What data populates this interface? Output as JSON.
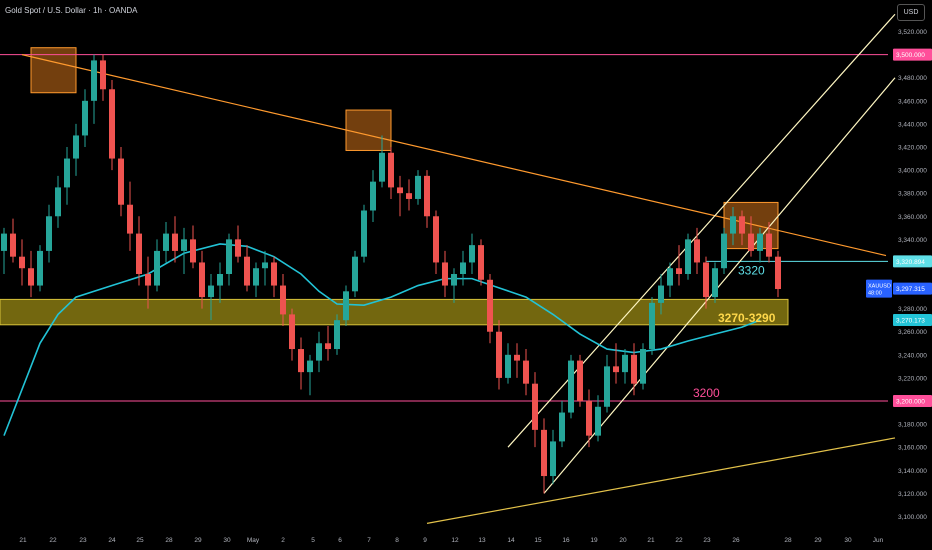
{
  "header": {
    "title": "Gold Spot / U.S. Dollar · 1h · OANDA",
    "currency_button": "USD"
  },
  "colors": {
    "background": "#000000",
    "bull": "#26a69a",
    "bear": "#ef5350",
    "trendline": "#ff9a2e",
    "channel": "#fff7c2",
    "support_line": "#e3c24a",
    "resistance_pink": "#ff4f9a",
    "ma_line": "#22c3d6",
    "level_cyan": "#5fe0e8",
    "zone_fill": "rgba(209,188,28,0.55)",
    "box_fill": "rgba(255,140,30,0.45)",
    "last_price_label": "#2962ff",
    "axis_text": "#b2b5be",
    "grid": "#141414"
  },
  "chart_data": {
    "type": "candlestick",
    "symbol": "XAUUSD",
    "timeframe": "1h",
    "x_tick_labels": [
      "21",
      "22",
      "23",
      "24",
      "25",
      "28",
      "29",
      "30",
      "May",
      "2",
      "5",
      "6",
      "7",
      "8",
      "9",
      "12",
      "13",
      "14",
      "15",
      "16",
      "19",
      "20",
      "21",
      "22",
      "23",
      "26",
      "28",
      "29",
      "30",
      "Jun"
    ],
    "ylim": [
      3090,
      3530
    ],
    "y_ticks": [
      3100,
      3120,
      3140,
      3160,
      3180,
      3200,
      3220,
      3240,
      3260,
      3280,
      3300,
      3320,
      3340,
      3360,
      3380,
      3400,
      3420,
      3440,
      3460,
      3480,
      3500,
      3520
    ],
    "price_labels": [
      {
        "value": 3500,
        "text": "3,500.000",
        "color": "#ff4f9a"
      },
      {
        "value": 3320.894,
        "text": "3,320.894",
        "color": "#5fe0e8"
      },
      {
        "value": 3297.315,
        "text": "3,297.315",
        "color": "#2962ff",
        "symbol": "XAUUSD",
        "countdown": "48:00"
      },
      {
        "value": 3270.173,
        "text": "3,270.173",
        "color": "#22c3d6"
      },
      {
        "value": 3200,
        "text": "3,200.000",
        "color": "#ff4f9a"
      }
    ],
    "annotations": [
      {
        "text": "3320",
        "price": 3320.894,
        "color": "#5fe0e8"
      },
      {
        "text": "3270-3290",
        "price_low": 3266,
        "price_high": 3288,
        "color": "#ffd84a"
      },
      {
        "text": "3200",
        "price": 3200,
        "color": "#ff4f9a"
      }
    ],
    "horizontal_lines": [
      {
        "price": 3500,
        "color": "#ff4f9a"
      },
      {
        "price": 3200,
        "color": "#ff4f9a"
      },
      {
        "price": 3320.894,
        "color": "#5fe0e8"
      }
    ],
    "candles": [
      [
        0,
        3330,
        3350,
        3310,
        3345
      ],
      [
        1,
        3345,
        3358,
        3320,
        3325
      ],
      [
        2,
        3325,
        3340,
        3300,
        3315
      ],
      [
        3,
        3315,
        3330,
        3290,
        3300
      ],
      [
        4,
        3300,
        3335,
        3295,
        3330
      ],
      [
        5,
        3330,
        3370,
        3320,
        3360
      ],
      [
        6,
        3360,
        3395,
        3350,
        3385
      ],
      [
        7,
        3385,
        3420,
        3370,
        3410
      ],
      [
        8,
        3410,
        3440,
        3395,
        3430
      ],
      [
        9,
        3430,
        3470,
        3420,
        3460
      ],
      [
        10,
        3460,
        3500,
        3440,
        3495
      ],
      [
        11,
        3495,
        3500,
        3460,
        3470
      ],
      [
        12,
        3470,
        3478,
        3400,
        3410
      ],
      [
        13,
        3410,
        3420,
        3360,
        3370
      ],
      [
        14,
        3370,
        3390,
        3330,
        3345
      ],
      [
        15,
        3345,
        3360,
        3300,
        3310
      ],
      [
        16,
        3310,
        3325,
        3280,
        3300
      ],
      [
        17,
        3300,
        3340,
        3295,
        3330
      ],
      [
        18,
        3330,
        3355,
        3320,
        3345
      ],
      [
        19,
        3345,
        3360,
        3320,
        3330
      ],
      [
        20,
        3330,
        3350,
        3310,
        3340
      ],
      [
        21,
        3340,
        3352,
        3315,
        3320
      ],
      [
        22,
        3320,
        3330,
        3280,
        3290
      ],
      [
        23,
        3290,
        3310,
        3270,
        3300
      ],
      [
        24,
        3300,
        3320,
        3285,
        3310
      ],
      [
        25,
        3310,
        3345,
        3300,
        3340
      ],
      [
        26,
        3340,
        3352,
        3320,
        3325
      ],
      [
        27,
        3325,
        3335,
        3295,
        3300
      ],
      [
        28,
        3300,
        3320,
        3290,
        3315
      ],
      [
        29,
        3315,
        3330,
        3300,
        3320
      ],
      [
        30,
        3320,
        3325,
        3290,
        3300
      ],
      [
        31,
        3300,
        3310,
        3265,
        3275
      ],
      [
        32,
        3275,
        3280,
        3235,
        3245
      ],
      [
        33,
        3245,
        3255,
        3210,
        3225
      ],
      [
        34,
        3225,
        3240,
        3205,
        3235
      ],
      [
        35,
        3235,
        3260,
        3225,
        3250
      ],
      [
        36,
        3250,
        3265,
        3235,
        3245
      ],
      [
        37,
        3245,
        3275,
        3240,
        3270
      ],
      [
        38,
        3270,
        3300,
        3265,
        3295
      ],
      [
        39,
        3295,
        3330,
        3290,
        3325
      ],
      [
        40,
        3325,
        3370,
        3320,
        3365
      ],
      [
        41,
        3365,
        3400,
        3355,
        3390
      ],
      [
        42,
        3390,
        3430,
        3385,
        3415
      ],
      [
        43,
        3415,
        3420,
        3375,
        3385
      ],
      [
        44,
        3385,
        3395,
        3360,
        3380
      ],
      [
        45,
        3380,
        3392,
        3365,
        3375
      ],
      [
        46,
        3375,
        3400,
        3370,
        3395
      ],
      [
        47,
        3395,
        3400,
        3350,
        3360
      ],
      [
        48,
        3360,
        3365,
        3310,
        3320
      ],
      [
        49,
        3320,
        3330,
        3290,
        3300
      ],
      [
        50,
        3300,
        3315,
        3285,
        3310
      ],
      [
        51,
        3310,
        3330,
        3300,
        3320
      ],
      [
        52,
        3320,
        3345,
        3310,
        3335
      ],
      [
        53,
        3335,
        3340,
        3300,
        3305
      ],
      [
        54,
        3305,
        3310,
        3250,
        3260
      ],
      [
        55,
        3260,
        3270,
        3210,
        3220
      ],
      [
        56,
        3220,
        3250,
        3215,
        3240
      ],
      [
        57,
        3240,
        3250,
        3220,
        3235
      ],
      [
        58,
        3235,
        3245,
        3205,
        3215
      ],
      [
        59,
        3215,
        3225,
        3160,
        3175
      ],
      [
        60,
        3175,
        3185,
        3120,
        3135
      ],
      [
        61,
        3135,
        3175,
        3128,
        3165
      ],
      [
        62,
        3165,
        3200,
        3160,
        3190
      ],
      [
        63,
        3190,
        3240,
        3185,
        3235
      ],
      [
        64,
        3235,
        3240,
        3195,
        3200
      ],
      [
        65,
        3200,
        3210,
        3160,
        3170
      ],
      [
        66,
        3170,
        3205,
        3165,
        3195
      ],
      [
        67,
        3195,
        3240,
        3190,
        3230
      ],
      [
        68,
        3230,
        3250,
        3215,
        3225
      ],
      [
        69,
        3225,
        3245,
        3215,
        3240
      ],
      [
        70,
        3240,
        3250,
        3205,
        3215
      ],
      [
        71,
        3215,
        3250,
        3210,
        3245
      ],
      [
        72,
        3245,
        3290,
        3240,
        3285
      ],
      [
        73,
        3285,
        3310,
        3275,
        3300
      ],
      [
        74,
        3300,
        3320,
        3290,
        3315
      ],
      [
        75,
        3315,
        3335,
        3300,
        3310
      ],
      [
        76,
        3310,
        3345,
        3305,
        3340
      ],
      [
        77,
        3340,
        3350,
        3310,
        3320
      ],
      [
        78,
        3320,
        3325,
        3280,
        3290
      ],
      [
        79,
        3290,
        3320,
        3285,
        3315
      ],
      [
        80,
        3315,
        3350,
        3310,
        3345
      ],
      [
        81,
        3345,
        3368,
        3335,
        3360
      ],
      [
        82,
        3360,
        3365,
        3335,
        3345
      ],
      [
        83,
        3345,
        3360,
        3325,
        3330
      ],
      [
        84,
        3330,
        3350,
        3320,
        3345
      ],
      [
        85,
        3345,
        3355,
        3320,
        3325
      ],
      [
        86,
        3325,
        3330,
        3290,
        3297
      ]
    ],
    "moving_average": [
      [
        0,
        3170
      ],
      [
        2,
        3210
      ],
      [
        4,
        3250
      ],
      [
        6,
        3275
      ],
      [
        8,
        3290
      ],
      [
        12,
        3300
      ],
      [
        16,
        3310
      ],
      [
        20,
        3328
      ],
      [
        24,
        3336
      ],
      [
        27,
        3334
      ],
      [
        30,
        3325
      ],
      [
        33,
        3310
      ],
      [
        35,
        3295
      ],
      [
        37,
        3284
      ],
      [
        40,
        3283
      ],
      [
        43,
        3290
      ],
      [
        46,
        3300
      ],
      [
        49,
        3306
      ],
      [
        52,
        3306
      ],
      [
        55,
        3298
      ],
      [
        58,
        3290
      ],
      [
        61,
        3275
      ],
      [
        64,
        3258
      ],
      [
        67,
        3245
      ],
      [
        70,
        3242
      ],
      [
        73,
        3245
      ],
      [
        76,
        3252
      ],
      [
        79,
        3258
      ],
      [
        82,
        3264
      ],
      [
        84,
        3270
      ]
    ],
    "drawn_lines": [
      {
        "kind": "descending_trendline",
        "from": [
          2,
          3500
        ],
        "to": [
          98,
          3326
        ],
        "color": "#ff9a2e"
      },
      {
        "kind": "channel_upper",
        "from": [
          56,
          3160
        ],
        "to": [
          99,
          3535
        ],
        "color": "#fff7c2"
      },
      {
        "kind": "channel_lower",
        "from": [
          60,
          3120
        ],
        "to": [
          99,
          3480
        ],
        "color": "#fff7c2"
      },
      {
        "kind": "rising_support",
        "from": [
          47,
          3094
        ],
        "to": [
          99,
          3168
        ],
        "color": "#e3c24a"
      }
    ],
    "highlight_boxes": [
      {
        "from": [
          3,
          3467
        ],
        "to": [
          8,
          3506
        ]
      },
      {
        "from": [
          38,
          3417
        ],
        "to": [
          43,
          3452
        ]
      },
      {
        "from": [
          80,
          3332
        ],
        "to": [
          86,
          3372
        ]
      }
    ],
    "grid": false,
    "legend": "none"
  }
}
